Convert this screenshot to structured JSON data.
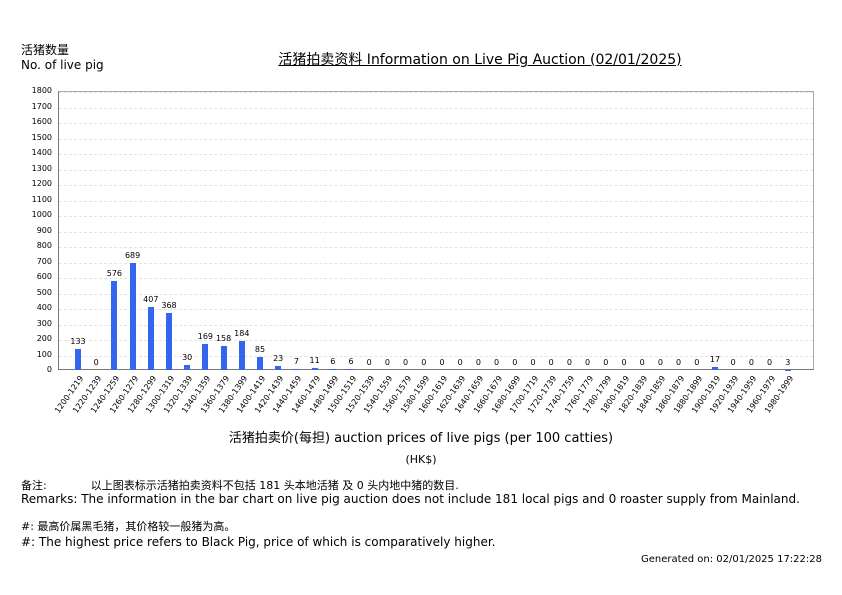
{
  "header": {
    "ylabel_cn": "活猪数量",
    "ylabel_en": "No. of live pig",
    "title": "活猪拍卖资料 Information on Live Pig Auction (02/01/2025)"
  },
  "axis": {
    "xtitle": "活猪拍卖价(每担) auction prices of live pigs (per 100 catties)",
    "unit": "(HK$)"
  },
  "remarks": {
    "cn_label": "备注:",
    "cn_text": "以上图表标示活猪拍卖资料不包括 181 头本地活猪 及 0 头内地中猪的数目.",
    "en_text": "Remarks: The information in the bar chart on live pig auction does not include 181 local pigs and 0 roaster supply from Mainland.",
    "hash_cn": "#: 最高价属黑毛猪，其价格较一般猪为高。",
    "hash_en": "#: The highest price refers to Black Pig, price of which is comparatively higher."
  },
  "footer": {
    "generated": "Generated on: 02/01/2025 17:22:28"
  },
  "colors": {
    "bar": "#3366ee",
    "grid": "#e4e4e4",
    "axis": "#777777"
  },
  "chart_data": {
    "type": "bar",
    "title": "活猪拍卖资料 Information on Live Pig Auction (02/01/2025)",
    "xlabel": "活猪拍卖价(每担) auction prices of live pigs (per 100 catties) (HK$)",
    "ylabel": "活猪数量 No. of live pig",
    "ylim": [
      0,
      1800
    ],
    "yticks": [
      0,
      100,
      200,
      300,
      400,
      500,
      600,
      700,
      800,
      900,
      1000,
      1100,
      1200,
      1300,
      1400,
      1500,
      1600,
      1700,
      1800
    ],
    "grid": true,
    "legend": null,
    "categories": [
      "1200-1219",
      "1220-1239",
      "1240-1259",
      "1260-1279",
      "1280-1299",
      "1300-1319",
      "1320-1339",
      "1340-1359",
      "1360-1379",
      "1380-1399",
      "1400-1419",
      "1420-1439",
      "1440-1459",
      "1460-1479",
      "1480-1499",
      "1500-1519",
      "1520-1539",
      "1540-1559",
      "1560-1579",
      "1580-1599",
      "1600-1619",
      "1620-1639",
      "1640-1659",
      "1660-1679",
      "1680-1699",
      "1700-1719",
      "1720-1739",
      "1740-1759",
      "1760-1779",
      "1780-1799",
      "1800-1819",
      "1820-1839",
      "1840-1859",
      "1860-1879",
      "1880-1899",
      "1900-1919",
      "1920-1939",
      "1940-1959",
      "1960-1979",
      "1980-1999"
    ],
    "values": [
      133,
      0,
      576,
      689,
      407,
      368,
      30,
      169,
      158,
      184,
      85,
      23,
      7,
      11,
      6,
      6,
      0,
      0,
      0,
      0,
      0,
      0,
      0,
      0,
      0,
      0,
      0,
      0,
      0,
      0,
      0,
      0,
      0,
      0,
      0,
      17,
      0,
      0,
      0,
      3
    ]
  }
}
